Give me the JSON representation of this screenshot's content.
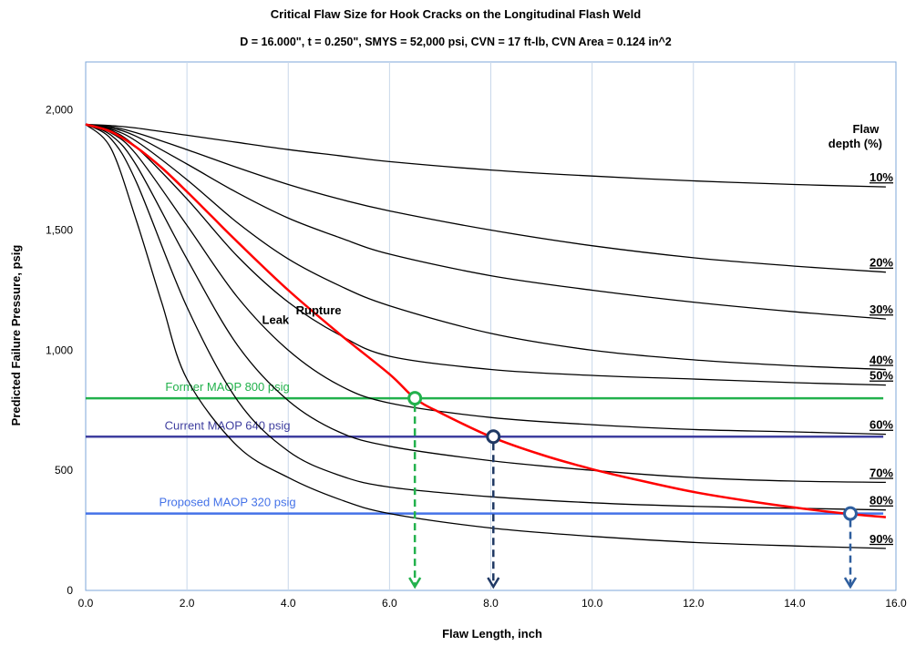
{
  "chart_data": {
    "type": "line",
    "title": "Critical Flaw Size for Hook Cracks on the Longitudinal Flash Weld",
    "subtitle": "D = 16.000\",  t = 0.250\",  SMYS = 52,000 psi,  CVN = 17 ft-lb,  CVN Area = 0.124 in^2",
    "xlabel": "Flaw Length, inch",
    "ylabel": "Predicted Failure Pressure, psig",
    "xlim": [
      0,
      16
    ],
    "ylim": [
      0,
      2200
    ],
    "x_ticks": [
      0,
      2,
      4,
      6,
      8,
      10,
      12,
      14,
      16
    ],
    "x_tick_labels": [
      "0.0",
      "2.0",
      "4.0",
      "6.0",
      "8.0",
      "10.0",
      "12.0",
      "14.0",
      "16.0"
    ],
    "y_ticks": [
      0,
      500,
      1000,
      1500,
      2000
    ],
    "y_tick_labels": [
      "0",
      "500",
      "1,000",
      "1,500",
      "2,000"
    ],
    "grid": "vertical",
    "legend_title": "Flaw\ndepth (%)",
    "series": [
      {
        "name": "10%",
        "color": "#000000",
        "x": [
          0,
          0.5,
          1,
          2,
          3,
          4,
          5,
          6,
          8,
          10,
          12,
          14,
          15.8
        ],
        "y": [
          1940,
          1935,
          1925,
          1895,
          1865,
          1835,
          1810,
          1785,
          1750,
          1725,
          1705,
          1690,
          1680
        ]
      },
      {
        "name": "20%",
        "color": "#000000",
        "x": [
          0,
          0.5,
          1,
          2,
          3,
          4,
          5,
          6,
          8,
          10,
          12,
          14,
          15.8
        ],
        "y": [
          1940,
          1930,
          1905,
          1835,
          1760,
          1690,
          1630,
          1580,
          1500,
          1435,
          1385,
          1350,
          1325
        ]
      },
      {
        "name": "30%",
        "color": "#000000",
        "x": [
          0,
          0.5,
          1,
          2,
          3,
          4,
          5,
          6,
          8,
          10,
          12,
          14,
          15.8
        ],
        "y": [
          1940,
          1925,
          1890,
          1775,
          1655,
          1550,
          1470,
          1400,
          1310,
          1250,
          1200,
          1160,
          1130
        ]
      },
      {
        "name": "40%",
        "color": "#000000",
        "x": [
          0,
          0.5,
          1,
          2,
          3,
          4,
          5,
          6,
          8,
          10,
          12,
          14,
          15.8
        ],
        "y": [
          1940,
          1920,
          1870,
          1710,
          1530,
          1380,
          1270,
          1185,
          1070,
          1000,
          960,
          935,
          920
        ]
      },
      {
        "name": "50%",
        "color": "#000000",
        "x": [
          0,
          0.5,
          1,
          2,
          3,
          4,
          5,
          6,
          8,
          10,
          12,
          14,
          15.8
        ],
        "y": [
          1940,
          1915,
          1845,
          1630,
          1390,
          1200,
          1065,
          975,
          920,
          895,
          880,
          865,
          855
        ]
      },
      {
        "name": "60%",
        "color": "#000000",
        "x": [
          0,
          0.5,
          1,
          2,
          3,
          4,
          5,
          6,
          8,
          10,
          12,
          14,
          15.8
        ],
        "y": [
          1940,
          1905,
          1815,
          1520,
          1220,
          1000,
          855,
          780,
          720,
          690,
          670,
          660,
          650
        ]
      },
      {
        "name": "70%",
        "color": "#000000",
        "x": [
          0,
          0.5,
          1,
          2,
          3,
          4,
          5,
          6,
          8,
          10,
          12,
          14,
          15.8
        ],
        "y": [
          1940,
          1895,
          1770,
          1380,
          1020,
          790,
          660,
          600,
          540,
          500,
          470,
          455,
          450
        ]
      },
      {
        "name": "80%",
        "color": "#000000",
        "x": [
          0,
          0.5,
          1,
          2,
          3,
          4,
          5,
          6,
          8,
          10,
          12,
          14,
          15.8
        ],
        "y": [
          1940,
          1880,
          1700,
          1180,
          790,
          580,
          480,
          430,
          390,
          365,
          350,
          342,
          335
        ]
      },
      {
        "name": "90%",
        "color": "#000000",
        "x": [
          0,
          0.5,
          1,
          1.5,
          2,
          3,
          4,
          5,
          6,
          8,
          10,
          12,
          14,
          15.8
        ],
        "y": [
          1940,
          1840,
          1540,
          1200,
          880,
          600,
          470,
          380,
          320,
          260,
          225,
          200,
          185,
          175
        ]
      },
      {
        "name": "",
        "color": "#ff0000",
        "x": [
          0,
          0.5,
          1,
          1.5,
          2,
          2.5,
          3,
          4,
          5,
          6,
          6.5,
          7,
          8,
          9,
          10,
          11,
          12,
          13,
          14,
          15,
          15.8
        ],
        "y": [
          1940,
          1910,
          1845,
          1760,
          1660,
          1555,
          1450,
          1250,
          1070,
          900,
          800,
          740,
          640,
          565,
          505,
          455,
          410,
          375,
          345,
          320,
          305
        ]
      }
    ],
    "reference_lines": [
      {
        "label": "Former MAOP 800 psig",
        "y": 800,
        "color": "#22b14c"
      },
      {
        "label": "Current MAOP 640 psig",
        "y": 640,
        "color": "#3f3f9f"
      },
      {
        "label": "Proposed MAOP 320 psig",
        "y": 320,
        "color": "#4472e8"
      }
    ],
    "markers": [
      {
        "x": 6.5,
        "y": 800,
        "color": "#22b14c"
      },
      {
        "x": 8.05,
        "y": 640,
        "color": "#1f3864"
      },
      {
        "x": 15.1,
        "y": 320,
        "color": "#2e5e9e"
      }
    ],
    "annotations": [
      {
        "text": "Leak",
        "x": 3.75,
        "y": 1110
      },
      {
        "text": "Rupture",
        "x": 4.6,
        "y": 1150
      }
    ]
  }
}
